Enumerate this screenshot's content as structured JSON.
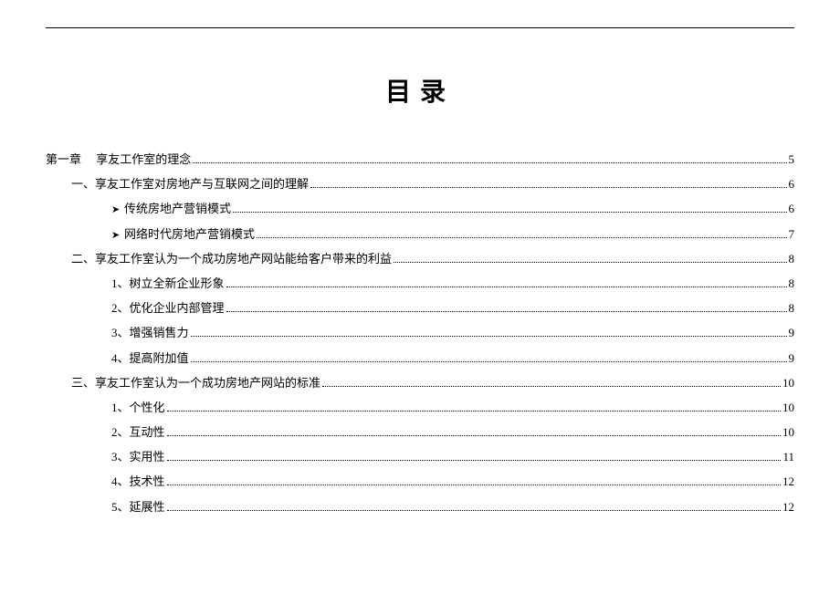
{
  "title": "目录",
  "colors": {
    "text": "#000000",
    "background": "#ffffff",
    "rule": "#000000",
    "leader": "#000000"
  },
  "typography": {
    "title_fontsize": 28,
    "title_letterspacing": 10,
    "body_fontsize": 13,
    "font_family": "SimSun/宋体",
    "line_height": 1.9
  },
  "toc": [
    {
      "indent": 0,
      "bullet": "",
      "label": "第一章　 享友工作室的理念",
      "page": "5"
    },
    {
      "indent": 1,
      "bullet": "",
      "label": "一、享友工作室对房地产与互联网之间的理解",
      "page": "6"
    },
    {
      "indent": 2,
      "bullet": "➤",
      "label": "传统房地产营销模式",
      "page": "6"
    },
    {
      "indent": 2,
      "bullet": "➤",
      "label": "网络时代房地产营销模式",
      "page": "7"
    },
    {
      "indent": 1,
      "bullet": "",
      "label": "二、享友工作室认为一个成功房地产网站能给客户带来的利益",
      "page": "8"
    },
    {
      "indent": 2,
      "bullet": "",
      "label": "1、树立全新企业形象",
      "page": "8"
    },
    {
      "indent": 2,
      "bullet": "",
      "label": "2、优化企业内部管理",
      "page": "8"
    },
    {
      "indent": 2,
      "bullet": "",
      "label": "3、增强销售力",
      "page": "9"
    },
    {
      "indent": 2,
      "bullet": "",
      "label": "4、提高附加值",
      "page": "9"
    },
    {
      "indent": 1,
      "bullet": "",
      "label": "三、享友工作室认为一个成功房地产网站的标准",
      "page": "10"
    },
    {
      "indent": 2,
      "bullet": "",
      "label": "1、个性化",
      "page": "10"
    },
    {
      "indent": 2,
      "bullet": "",
      "label": "2、互动性",
      "page": "10"
    },
    {
      "indent": 2,
      "bullet": "",
      "label": "3、实用性",
      "page": "11"
    },
    {
      "indent": 2,
      "bullet": "",
      "label": "4、技术性",
      "page": "12"
    },
    {
      "indent": 2,
      "bullet": "",
      "label": "5、延展性",
      "page": "12"
    }
  ]
}
